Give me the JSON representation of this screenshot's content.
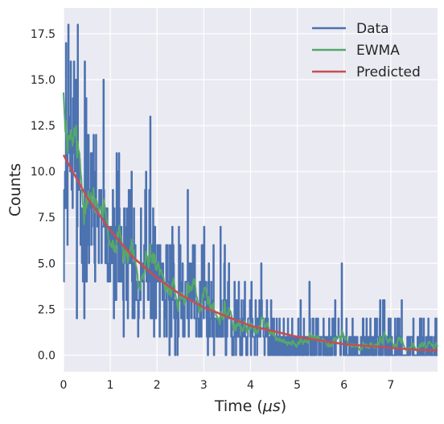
{
  "chart_data": {
    "type": "line",
    "title": "",
    "xlabel": "Time ($\\mu s$)",
    "xlabel_parts": {
      "prefix": "Time (",
      "symbol": "μs",
      "suffix": ")"
    },
    "ylabel": "Counts",
    "xlim": [
      0,
      8
    ],
    "ylim": [
      -0.9,
      18.9
    ],
    "x_ticks": [
      0,
      1,
      2,
      3,
      4,
      5,
      6,
      7
    ],
    "x_tick_labels": [
      "0",
      "1",
      "2",
      "3",
      "4",
      "5",
      "6",
      "7"
    ],
    "y_ticks": [
      0,
      2.5,
      5,
      7.5,
      10,
      12.5,
      15,
      17.5
    ],
    "y_tick_labels": [
      "0.0",
      "2.5",
      "5.0",
      "7.5",
      "10.0",
      "12.5",
      "15.0",
      "17.5"
    ],
    "grid": true,
    "legend_position": "top-right",
    "colors": {
      "background": "#eaeaf2",
      "grid": "#ffffff",
      "data": "#4c72b0",
      "ewma": "#55a868",
      "predicted": "#c44e52"
    },
    "series": [
      {
        "name": "Data",
        "style": "step",
        "x_range": [
          0,
          8
        ],
        "n_points": 800,
        "model": {
          "amplitude": 11,
          "decay_time_us": 1.9,
          "offset": 0.2,
          "noise": "poisson"
        },
        "notable_peaks": [
          [
            0.05,
            17
          ],
          [
            0.1,
            18
          ],
          [
            0.3,
            18
          ],
          [
            0.22,
            16
          ],
          [
            0.45,
            16
          ],
          [
            0.85,
            15
          ],
          [
            1.85,
            13
          ],
          [
            2.65,
            9
          ],
          [
            3.35,
            7
          ],
          [
            5.95,
            5
          ],
          [
            7.95,
            2
          ]
        ]
      },
      {
        "name": "EWMA",
        "style": "line",
        "x_range": [
          0,
          8
        ],
        "start_value": 14.3,
        "smoothing": "exponentially weighted moving average of Data"
      },
      {
        "name": "Predicted",
        "style": "line",
        "x": [
          0,
          0.5,
          1,
          1.5,
          2,
          2.5,
          3,
          3.5,
          4,
          4.5,
          5,
          5.5,
          6,
          6.5,
          7,
          7.5,
          8
        ],
        "y": [
          10.9,
          8.6,
          6.8,
          5.3,
          4.2,
          3.3,
          2.6,
          2.1,
          1.6,
          1.3,
          1.0,
          0.8,
          0.6,
          0.5,
          0.4,
          0.3,
          0.25
        ]
      }
    ]
  }
}
